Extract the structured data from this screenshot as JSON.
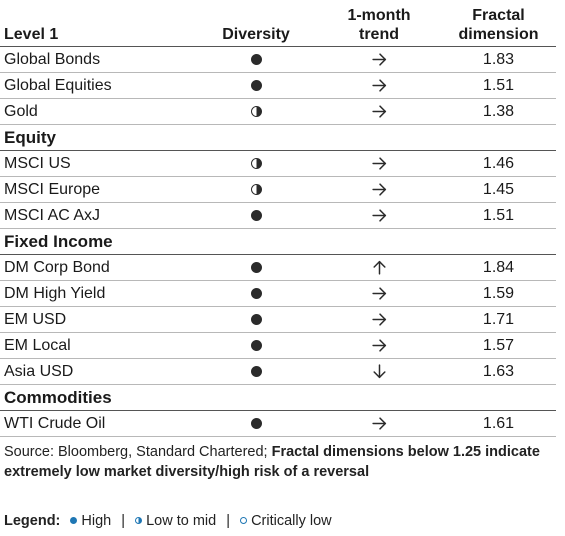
{
  "table": {
    "headers": {
      "col1": "Level 1",
      "col2": "Diversity",
      "col3": [
        "1-month",
        "trend"
      ],
      "col4": [
        "Fractal",
        "dimension"
      ]
    },
    "rows": [
      {
        "kind": "asset",
        "name": "Global Bonds",
        "diversity": "high",
        "trend": "right",
        "value": "1.83"
      },
      {
        "kind": "asset",
        "name": "Global Equities",
        "diversity": "high",
        "trend": "right",
        "value": "1.51"
      },
      {
        "kind": "asset",
        "name": "Gold",
        "diversity": "mid",
        "trend": "right",
        "value": "1.38"
      },
      {
        "kind": "section",
        "name": "Equity"
      },
      {
        "kind": "asset",
        "name": "MSCI US",
        "diversity": "mid",
        "trend": "right",
        "value": "1.46"
      },
      {
        "kind": "asset",
        "name": "MSCI Europe",
        "diversity": "mid",
        "trend": "right",
        "value": "1.45"
      },
      {
        "kind": "asset",
        "name": "MSCI AC AxJ",
        "diversity": "high",
        "trend": "right",
        "value": "1.51"
      },
      {
        "kind": "section",
        "name": "Fixed Income"
      },
      {
        "kind": "asset",
        "name": "DM Corp Bond",
        "diversity": "high",
        "trend": "up",
        "value": "1.84"
      },
      {
        "kind": "asset",
        "name": "DM High Yield",
        "diversity": "high",
        "trend": "right",
        "value": "1.59"
      },
      {
        "kind": "asset",
        "name": "EM USD",
        "diversity": "high",
        "trend": "right",
        "value": "1.71"
      },
      {
        "kind": "asset",
        "name": "EM Local",
        "diversity": "high",
        "trend": "right",
        "value": "1.57"
      },
      {
        "kind": "asset",
        "name": "Asia USD",
        "diversity": "high",
        "trend": "down",
        "value": "1.63"
      },
      {
        "kind": "section",
        "name": "Commodities"
      },
      {
        "kind": "asset",
        "name": "WTI Crude Oil",
        "diversity": "high",
        "trend": "right",
        "value": "1.61"
      }
    ]
  },
  "source": {
    "prefix": "Source: Bloomberg, Standard Chartered; ",
    "bold_note": "Fractal dimensions below 1.25 indicate extremely low market diversity/high risk of a reversal"
  },
  "legend": {
    "title": "Legend:",
    "separator": "|",
    "items": [
      {
        "level": "high",
        "label": "High"
      },
      {
        "level": "mid",
        "label": "Low to mid"
      },
      {
        "level": "low",
        "label": "Critically low"
      }
    ]
  },
  "colors": {
    "dot": "#2b2b2b",
    "legend_dot": "#1f77b4"
  }
}
